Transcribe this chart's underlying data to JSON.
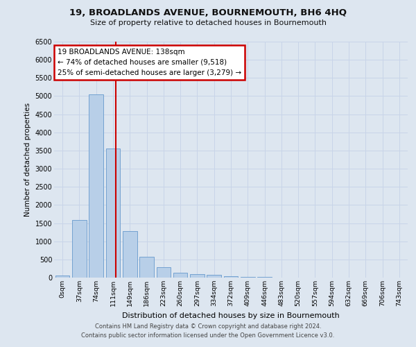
{
  "title1": "19, BROADLANDS AVENUE, BOURNEMOUTH, BH6 4HQ",
  "title2": "Size of property relative to detached houses in Bournemouth",
  "xlabel": "Distribution of detached houses by size in Bournemouth",
  "ylabel": "Number of detached properties",
  "bin_labels": [
    "0sqm",
    "37sqm",
    "74sqm",
    "111sqm",
    "149sqm",
    "186sqm",
    "223sqm",
    "260sqm",
    "297sqm",
    "334sqm",
    "372sqm",
    "409sqm",
    "446sqm",
    "483sqm",
    "520sqm",
    "557sqm",
    "594sqm",
    "632sqm",
    "669sqm",
    "706sqm",
    "743sqm"
  ],
  "bar_heights": [
    55,
    1580,
    5050,
    3560,
    1280,
    570,
    280,
    130,
    100,
    80,
    45,
    25,
    12,
    8,
    6,
    4,
    2,
    2,
    1,
    1,
    0
  ],
  "bar_color": "#b8cfe8",
  "bar_edge_color": "#6699cc",
  "annotation_title": "19 BROADLANDS AVENUE: 138sqm",
  "annotation_line1": "← 74% of detached houses are smaller (9,518)",
  "annotation_line2": "25% of semi-detached houses are larger (3,279) →",
  "red_line_color": "#cc0000",
  "annotation_box_color": "#ffffff",
  "annotation_box_edge": "#cc0000",
  "ylim": [
    0,
    6500
  ],
  "yticks": [
    0,
    500,
    1000,
    1500,
    2000,
    2500,
    3000,
    3500,
    4000,
    4500,
    5000,
    5500,
    6000,
    6500
  ],
  "grid_color": "#c8d4e8",
  "background_color": "#dde6f0",
  "footer1": "Contains HM Land Registry data © Crown copyright and database right 2024.",
  "footer2": "Contains public sector information licensed under the Open Government Licence v3.0."
}
